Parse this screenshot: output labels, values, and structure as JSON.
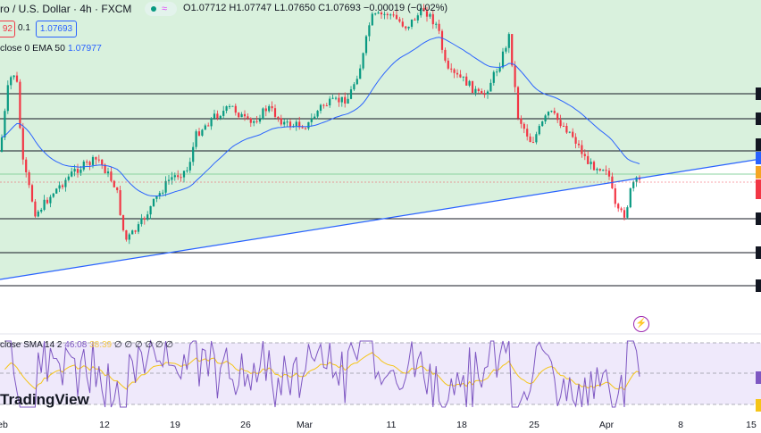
{
  "header": {
    "symbol_title": "ro / U.S. Dollar · 4h · FXCM",
    "status_icon": "market-open-dot-icon",
    "wave_icon": "wave-icon",
    "ohlc": {
      "open_label": "O",
      "open": "1.07712",
      "high_label": "H",
      "high": "1.07747",
      "low_label": "L",
      "low": "1.07650",
      "close_label": "C",
      "close": "1.07693",
      "change": "−0.00019 (−0.02%)"
    },
    "bid": "92",
    "spread": "0.1",
    "ask": "1.07693"
  },
  "ema_legend": {
    "label": "close 0 EMA 50",
    "value": "1.07977"
  },
  "rsi_legend": {
    "label": "close SMA 14 2",
    "value1": "46.08",
    "value2": "38.39",
    "extras": "∅ ∅ ∅ ∅ ∅ ∅"
  },
  "logo": "TradingView",
  "x_axis": [
    "eb",
    "12",
    "19",
    "26",
    "Mar",
    "11",
    "18",
    "25",
    "Apr",
    "8",
    "15"
  ],
  "colors": {
    "up": "#089981",
    "down": "#f23645",
    "ema": "#2962ff",
    "channel_fill": "#d7f0da",
    "rsi_fill": "#efe9fb",
    "rsi_line": "#7e57c2",
    "rsi_ma": "#f5c518"
  }
}
